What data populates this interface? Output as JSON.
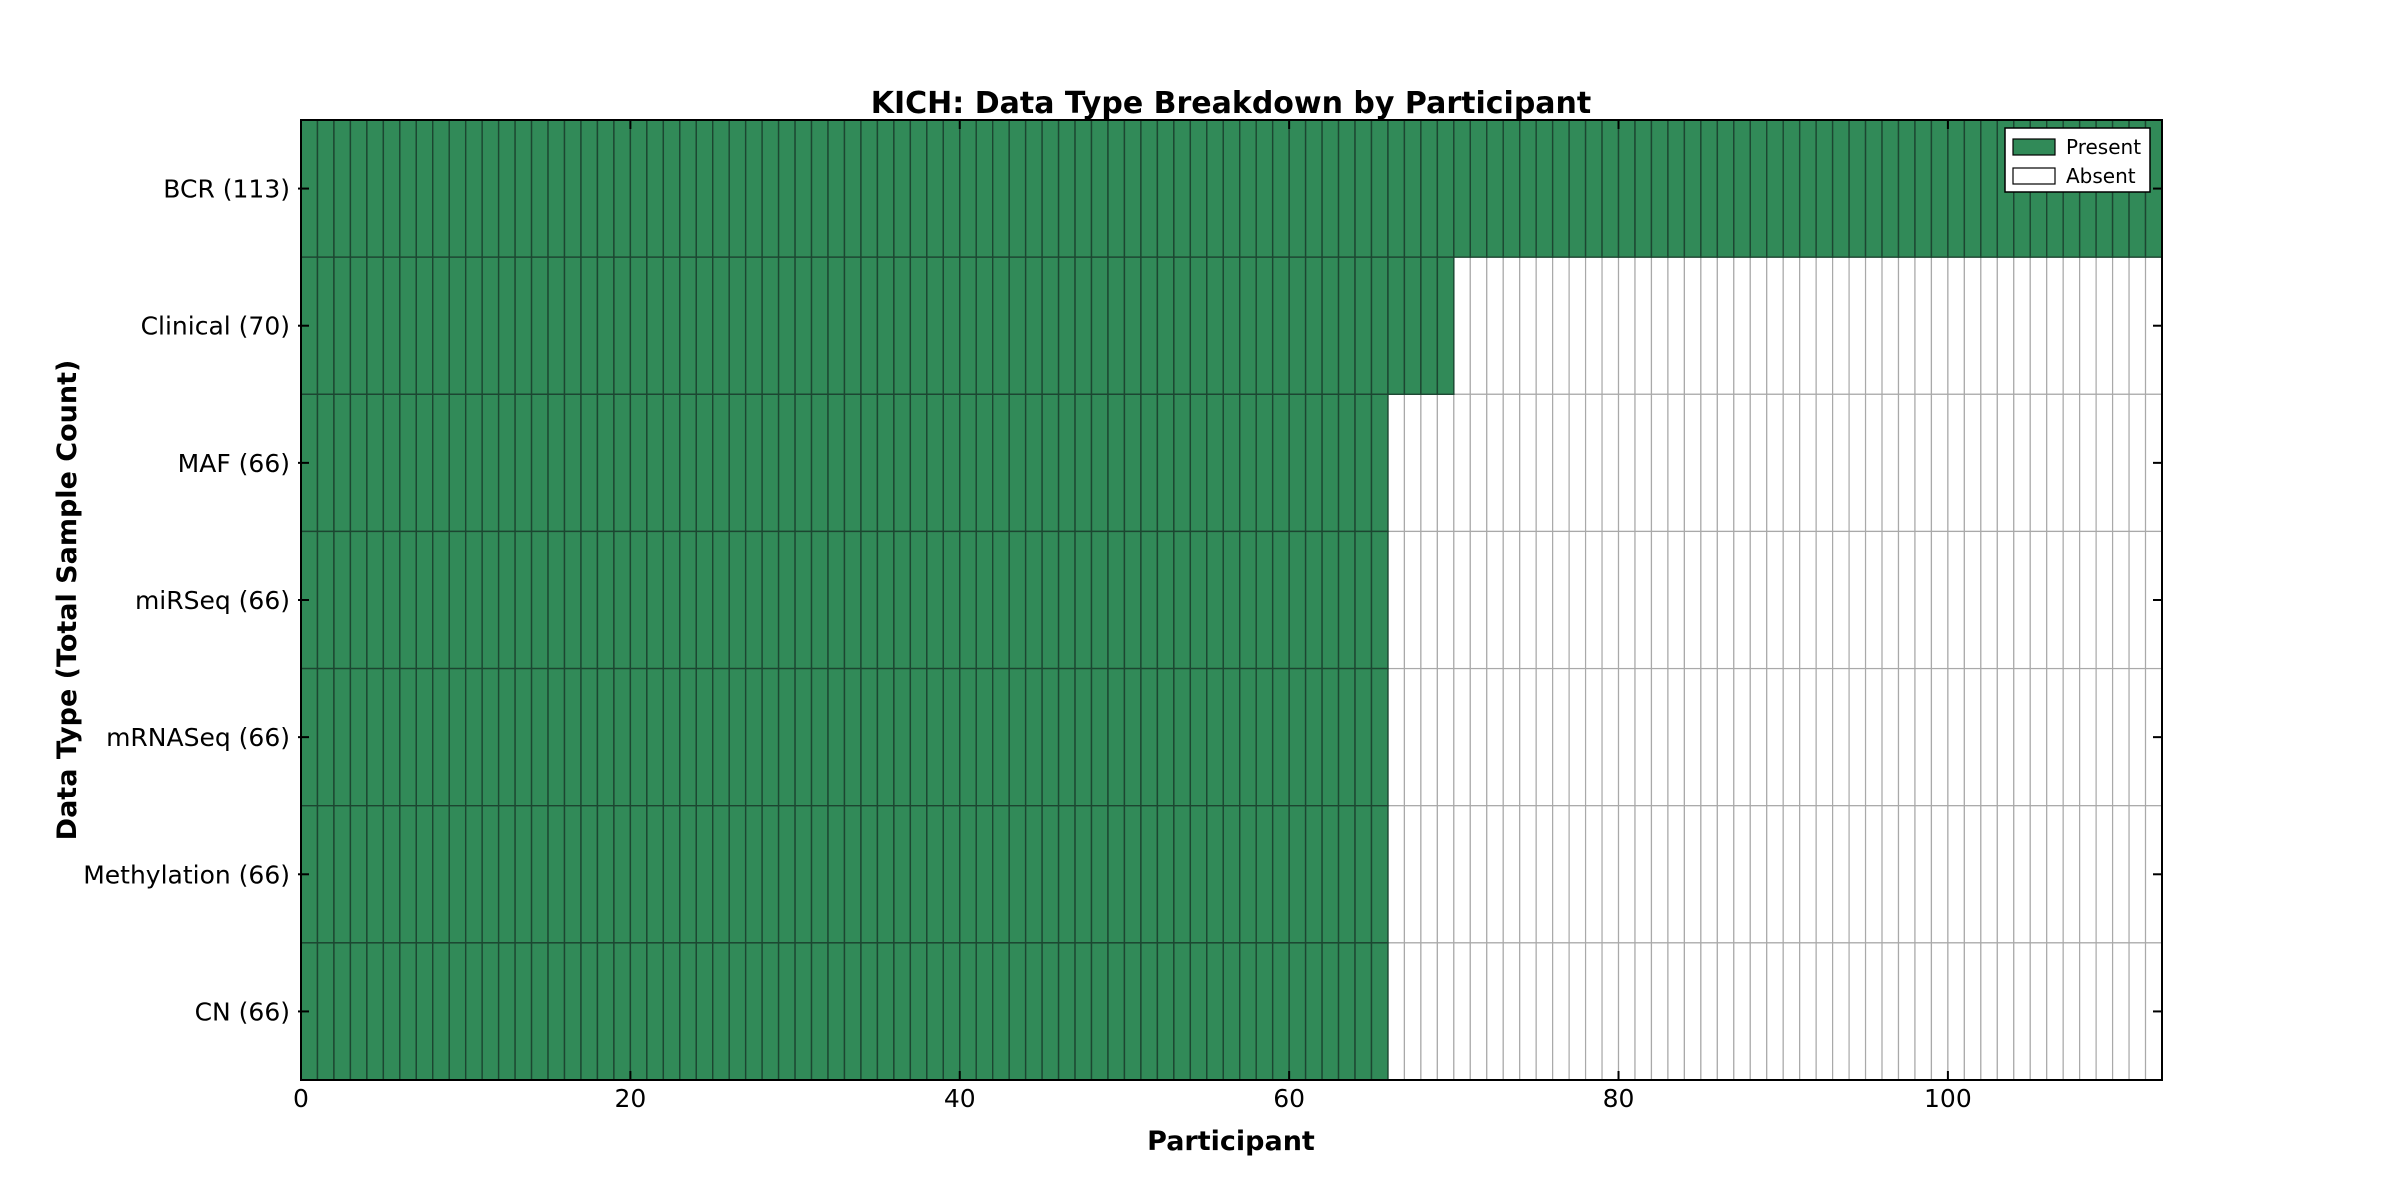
{
  "chart_data": {
    "type": "heatmap",
    "title": "KICH: Data Type Breakdown by Participant",
    "xlabel": "Participant",
    "ylabel": "Data Type (Total Sample Count)",
    "x_axis": {
      "min": 0,
      "max": 113,
      "ticks": [
        0,
        20,
        40,
        60,
        80,
        100
      ]
    },
    "n_participants": 113,
    "rows": [
      {
        "label": "BCR (113)",
        "data_type": "BCR",
        "total_sample_count": 113,
        "present_participants": 113
      },
      {
        "label": "Clinical (70)",
        "data_type": "Clinical",
        "total_sample_count": 70,
        "present_participants": 70
      },
      {
        "label": "MAF (66)",
        "data_type": "MAF",
        "total_sample_count": 66,
        "present_participants": 66
      },
      {
        "label": "miRSeq (66)",
        "data_type": "miRSeq",
        "total_sample_count": 66,
        "present_participants": 66
      },
      {
        "label": "mRNASeq (66)",
        "data_type": "mRNASeq",
        "total_sample_count": 66,
        "present_participants": 66
      },
      {
        "label": "Methylation (66)",
        "data_type": "Methylation",
        "total_sample_count": 66,
        "present_participants": 66
      },
      {
        "label": "CN (66)",
        "data_type": "CN",
        "total_sample_count": 66,
        "present_participants": 66
      }
    ],
    "legend": {
      "position": "upper right",
      "entries": [
        {
          "label": "Present",
          "state": "present"
        },
        {
          "label": "Absent",
          "state": "absent"
        }
      ]
    },
    "colors": {
      "present_fill": "#318a58",
      "present_edge": "#1c4631",
      "absent_fill": "#ffffff",
      "absent_edge": "#a9a9a9",
      "axis": "#000000",
      "background": "#ffffff"
    },
    "grid": "per-cell edges",
    "tick_direction": "in"
  }
}
